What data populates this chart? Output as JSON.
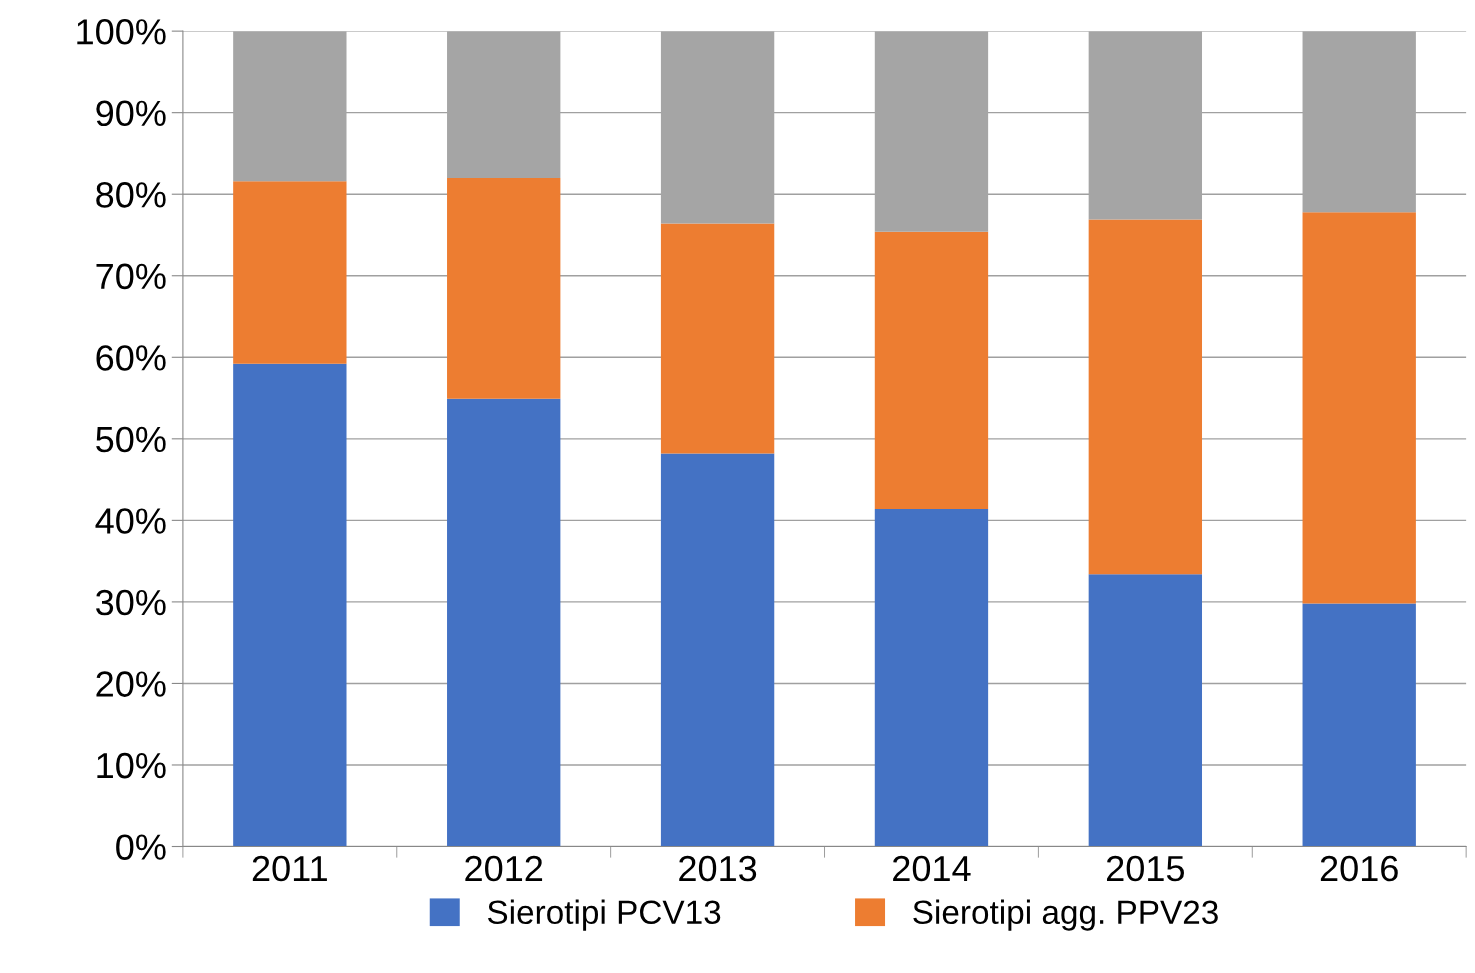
{
  "chart_data": {
    "type": "bar",
    "stacked": true,
    "categories": [
      "2011",
      "2012",
      "2013",
      "2014",
      "2015",
      "2016"
    ],
    "series": [
      {
        "name": "Sierotipi PCV13",
        "color": "#4472c4",
        "values": [
          59.2,
          54.9,
          48.2,
          41.4,
          33.4,
          29.8
        ]
      },
      {
        "name": "Sierotipi agg. PPV23",
        "color": "#ed7d31",
        "values": [
          22.4,
          27.1,
          28.2,
          34.0,
          43.5,
          48.0
        ]
      },
      {
        "color": "#a5a5a5",
        "values": [
          18.4,
          18.0,
          23.6,
          24.6,
          23.1,
          22.2
        ]
      }
    ],
    "ylim": [
      0,
      100
    ],
    "yticks": [
      {
        "value": 0,
        "label": "0%"
      },
      {
        "value": 10,
        "label": "10%"
      },
      {
        "value": 20,
        "label": "20%"
      },
      {
        "value": 30,
        "label": "30%"
      },
      {
        "value": 40,
        "label": "40%"
      },
      {
        "value": 50,
        "label": "50%"
      },
      {
        "value": 60,
        "label": "60%"
      },
      {
        "value": 70,
        "label": "70%"
      },
      {
        "value": 80,
        "label": "80%"
      },
      {
        "value": 90,
        "label": "90%"
      },
      {
        "value": 100,
        "label": "100%"
      }
    ],
    "grid": "y",
    "legend": "bottom"
  }
}
